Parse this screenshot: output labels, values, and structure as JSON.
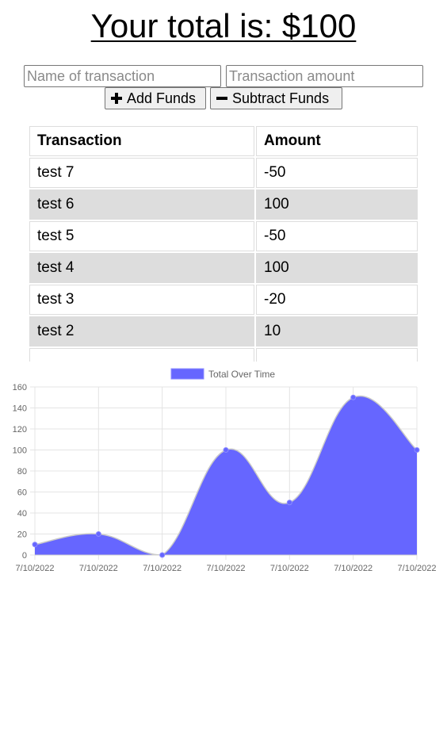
{
  "header": {
    "total_text": "Your total is: $100"
  },
  "form": {
    "name_placeholder": "Name of transaction",
    "amount_placeholder": "Transaction amount",
    "add_label": "Add Funds",
    "subtract_label": "Subtract Funds"
  },
  "table": {
    "headers": [
      "Transaction",
      "Amount"
    ],
    "rows": [
      {
        "name": "test 7",
        "amount": "-50"
      },
      {
        "name": "test 6",
        "amount": "100"
      },
      {
        "name": "test 5",
        "amount": "-50"
      },
      {
        "name": "test 4",
        "amount": "100"
      },
      {
        "name": "test 3",
        "amount": "-20"
      },
      {
        "name": "test 2",
        "amount": "10"
      }
    ]
  },
  "chart_data": {
    "type": "area",
    "x": [
      "7/10/2022",
      "7/10/2022",
      "7/10/2022",
      "7/10/2022",
      "7/10/2022",
      "7/10/2022",
      "7/10/2022"
    ],
    "series": [
      {
        "name": "Total Over Time",
        "values": [
          10,
          20,
          0,
          100,
          50,
          150,
          100
        ],
        "color": "#6666ff"
      }
    ],
    "ylim": [
      0,
      160
    ],
    "yticks": [
      0,
      20,
      40,
      60,
      80,
      100,
      120,
      140,
      160
    ],
    "grid": true,
    "legend": "top-center"
  }
}
